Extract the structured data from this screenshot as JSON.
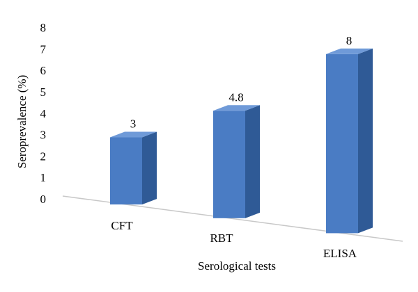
{
  "chart_data": {
    "type": "bar",
    "categories": [
      "CFT",
      "RBT",
      "ELISA"
    ],
    "values": [
      3,
      4.8,
      8
    ],
    "data_labels": [
      "3",
      "4.8",
      "8"
    ],
    "xlabel": "Serological tests",
    "ylabel": "Seroprevalence (%)",
    "ylim": [
      0,
      8
    ],
    "y_ticks": [
      "0",
      "1",
      "2",
      "3",
      "4",
      "5",
      "6",
      "7",
      "8"
    ],
    "grid": false,
    "legend": "none",
    "style": "3d-column",
    "colors": {
      "front": "#4a7cc4",
      "side": "#2f5a96",
      "top": "#6f9ad8",
      "base_line": "#c8c8c8"
    }
  }
}
